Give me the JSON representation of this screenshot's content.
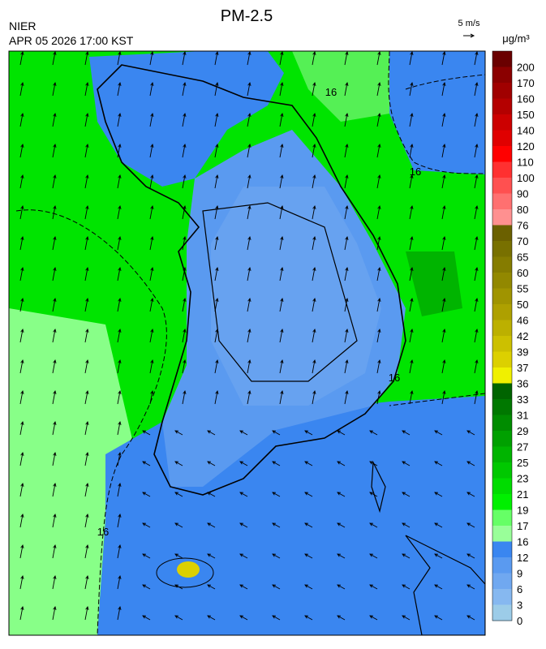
{
  "header": {
    "title": "PM-2.5",
    "source": "NIER",
    "timestamp": "APR 05 2026 17:00 KST",
    "wind_scale": "5 m/s"
  },
  "legend": {
    "unit": "μg/m³",
    "ticks": [
      200,
      170,
      160,
      150,
      140,
      120,
      110,
      100,
      90,
      80,
      76,
      70,
      65,
      60,
      55,
      50,
      46,
      42,
      39,
      37,
      36,
      33,
      31,
      29,
      27,
      25,
      23,
      21,
      19,
      17,
      16,
      12,
      9,
      6,
      3,
      0
    ],
    "colors": [
      "#6a0000",
      "#8b0000",
      "#a00000",
      "#b40000",
      "#cc0000",
      "#e00000",
      "#ff0000",
      "#ff3030",
      "#ff5050",
      "#ff7070",
      "#ff9090",
      "#6b6000",
      "#787000",
      "#857c00",
      "#928800",
      "#a09400",
      "#aea000",
      "#bcb000",
      "#ccc000",
      "#dcd000",
      "#f0f000",
      "#006400",
      "#007800",
      "#008c00",
      "#00a000",
      "#00b400",
      "#00c800",
      "#00dc00",
      "#00f000",
      "#66ff66",
      "#99ff99",
      "#3a86f0",
      "#5a9af0",
      "#70a8f0",
      "#86b8f0",
      "#9ccce8"
    ]
  },
  "map": {
    "contour_labels": [
      "16",
      "16",
      "16",
      "16"
    ]
  }
}
